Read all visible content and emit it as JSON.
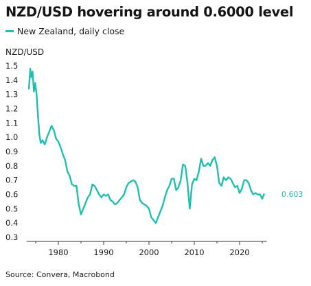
{
  "chart_data": {
    "type": "line",
    "title": "NZD/USD hovering around 0.6000 level",
    "ylabel": "NZD/USD",
    "xlabel": "",
    "source": "Source: Convera, Macrobond",
    "end_label": "0.603",
    "series": [
      {
        "name": "New Zealand, daily close",
        "color": "#1ebfae",
        "x": [
          1973.5,
          1973.8,
          1974.0,
          1974.3,
          1974.6,
          1974.9,
          1975.2,
          1975.5,
          1975.8,
          1976.1,
          1976.5,
          1977.0,
          1977.5,
          1978.0,
          1978.5,
          1979.0,
          1979.5,
          1980.0,
          1980.5,
          1981.0,
          1981.5,
          1982.0,
          1982.5,
          1983.0,
          1983.5,
          1984.0,
          1984.5,
          1985.0,
          1985.5,
          1986.0,
          1986.5,
          1987.0,
          1987.5,
          1988.0,
          1988.5,
          1989.0,
          1989.5,
          1990.0,
          1990.5,
          1991.0,
          1991.5,
          1992.0,
          1992.5,
          1993.0,
          1993.5,
          1994.0,
          1994.5,
          1995.0,
          1995.5,
          1996.0,
          1996.5,
          1997.0,
          1997.5,
          1998.0,
          1998.5,
          1999.0,
          1999.5,
          2000.0,
          2000.5,
          2001.0,
          2001.5,
          2002.0,
          2002.5,
          2003.0,
          2003.5,
          2004.0,
          2004.5,
          2005.0,
          2005.5,
          2006.0,
          2006.5,
          2007.0,
          2007.5,
          2008.0,
          2008.5,
          2009.0,
          2009.5,
          2010.0,
          2010.5,
          2011.0,
          2011.5,
          2012.0,
          2012.5,
          2013.0,
          2013.5,
          2014.0,
          2014.5,
          2015.0,
          2015.5,
          2016.0,
          2016.5,
          2017.0,
          2017.5,
          2018.0,
          2018.5,
          2019.0,
          2019.5,
          2020.0,
          2020.5,
          2021.0,
          2021.5,
          2022.0,
          2022.5,
          2023.0,
          2023.5,
          2024.0,
          2024.5,
          2025.0,
          2025.4
        ],
        "values": [
          1.34,
          1.48,
          1.42,
          1.46,
          1.32,
          1.38,
          1.3,
          1.15,
          1.02,
          0.96,
          0.98,
          0.95,
          1.0,
          1.04,
          1.08,
          1.05,
          0.99,
          0.97,
          0.93,
          0.88,
          0.84,
          0.76,
          0.73,
          0.67,
          0.66,
          0.66,
          0.53,
          0.46,
          0.5,
          0.54,
          0.58,
          0.6,
          0.67,
          0.66,
          0.63,
          0.6,
          0.58,
          0.6,
          0.59,
          0.6,
          0.56,
          0.55,
          0.53,
          0.54,
          0.56,
          0.58,
          0.6,
          0.65,
          0.68,
          0.69,
          0.7,
          0.69,
          0.65,
          0.56,
          0.54,
          0.53,
          0.52,
          0.5,
          0.44,
          0.42,
          0.4,
          0.44,
          0.48,
          0.52,
          0.58,
          0.63,
          0.66,
          0.71,
          0.71,
          0.63,
          0.65,
          0.7,
          0.81,
          0.8,
          0.68,
          0.5,
          0.67,
          0.71,
          0.7,
          0.76,
          0.85,
          0.8,
          0.8,
          0.82,
          0.8,
          0.84,
          0.86,
          0.8,
          0.68,
          0.66,
          0.72,
          0.7,
          0.72,
          0.71,
          0.68,
          0.65,
          0.66,
          0.61,
          0.64,
          0.7,
          0.7,
          0.68,
          0.63,
          0.6,
          0.61,
          0.6,
          0.6,
          0.57,
          0.603
        ]
      }
    ],
    "x_ticks": [
      "1980",
      "1990",
      "2000",
      "2010",
      "2020"
    ],
    "y_ticks": [
      "1.5",
      "1.4",
      "1.3",
      "1.2",
      "1.1",
      "1.0",
      "0.9",
      "0.8",
      "0.7",
      "0.6",
      "0.5",
      "0.4",
      "0.3"
    ],
    "xlim": [
      1973,
      2027
    ],
    "ylim": [
      0.3,
      1.5
    ],
    "grid": false,
    "legend_position": "top-left"
  }
}
